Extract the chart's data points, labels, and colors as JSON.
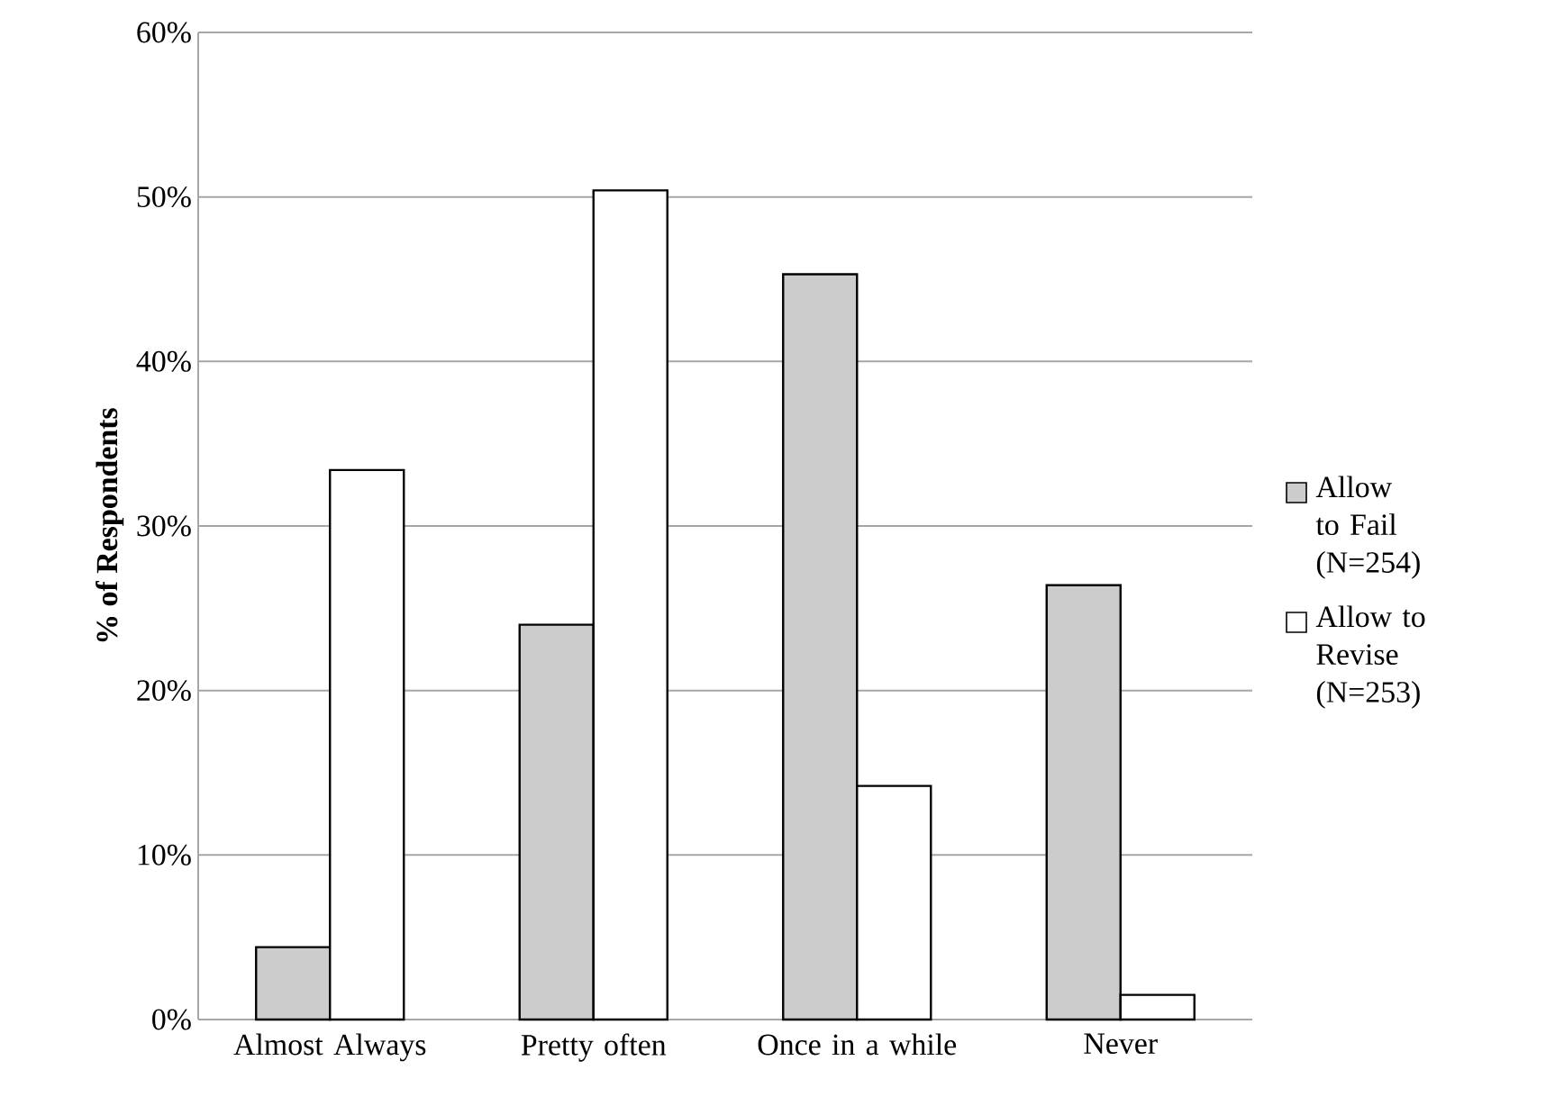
{
  "chart_data": {
    "type": "bar",
    "ylabel": "% of Respondents",
    "categories": [
      "Almost Always",
      "Pretty often",
      "Once in a while",
      "Never"
    ],
    "series": [
      {
        "name": "Allow to Fail (N=254)",
        "color": "#cccccc",
        "values": [
          4.4,
          24.0,
          45.3,
          26.4
        ]
      },
      {
        "name": "Allow to Revise (N=253)",
        "color": "#ffffff",
        "values": [
          33.4,
          50.4,
          14.2,
          1.5
        ]
      }
    ],
    "ylim": [
      0,
      60
    ],
    "yticks": [
      {
        "value": 0,
        "label": "0%"
      },
      {
        "value": 10,
        "label": "10%"
      },
      {
        "value": 20,
        "label": "20%"
      },
      {
        "value": 30,
        "label": "30%"
      },
      {
        "value": 40,
        "label": "40%"
      },
      {
        "value": 50,
        "label": "50%"
      },
      {
        "value": 60,
        "label": "60%"
      }
    ],
    "grid": "y",
    "legend": "right"
  }
}
